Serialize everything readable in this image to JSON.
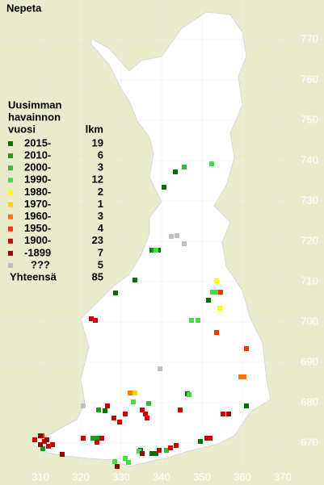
{
  "title": "Nepeta",
  "legend": {
    "heading": [
      "Uusimman",
      "havainnon",
      "vuosi"
    ],
    "count_heading": "lkm",
    "entries": [
      {
        "label": "2015-",
        "count": "19",
        "color": "#0a6e0a"
      },
      {
        "label": "2010-",
        "count": "6",
        "color": "#1f9a1f"
      },
      {
        "label": "2000-",
        "count": "3",
        "color": "#33bb33"
      },
      {
        "label": "1990-",
        "count": "12",
        "color": "#44dd44"
      },
      {
        "label": "1980-",
        "count": "2",
        "color": "#ffff00"
      },
      {
        "label": "1970-",
        "count": "1",
        "color": "#ffd200"
      },
      {
        "label": "1960-",
        "count": "3",
        "color": "#ff7700"
      },
      {
        "label": "1950-",
        "count": "4",
        "color": "#ff3300"
      },
      {
        "label": "1900-",
        "count": "23",
        "color": "#cc0000"
      },
      {
        "label": "-1899",
        "count": "7",
        "color": "#990000"
      },
      {
        "label": "???",
        "count": "5",
        "color": "#c0c0c0"
      }
    ],
    "total_label": "Yhteensä",
    "total": "85"
  },
  "axes": {
    "y_labels": [
      770,
      760,
      750,
      740,
      730,
      720,
      710,
      700,
      690,
      680,
      670
    ],
    "x_labels": [
      310,
      320,
      330,
      340,
      350,
      360,
      370
    ]
  }
}
